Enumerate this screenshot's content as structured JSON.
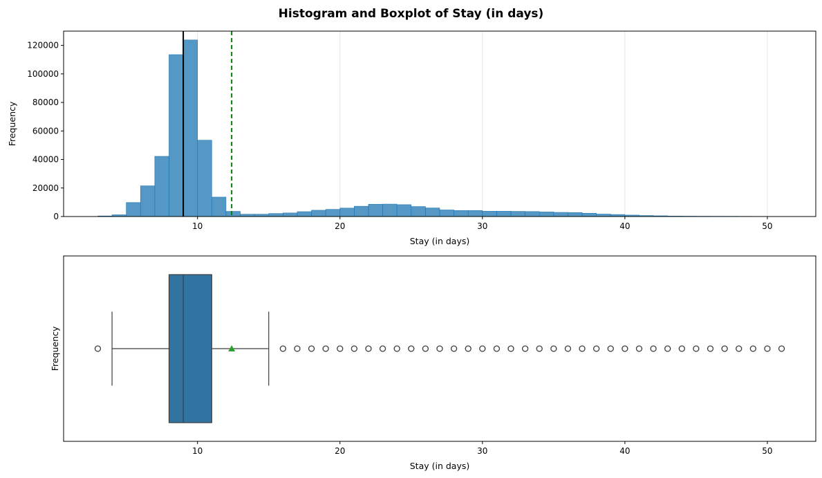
{
  "figure": {
    "title": "Histogram and Boxplot of Stay (in days)"
  },
  "chart_data": [
    {
      "type": "bar",
      "subtype": "histogram",
      "xlabel": "Stay (in days)",
      "ylabel": "Frequency",
      "xlim": [
        0.6,
        53.4
      ],
      "ylim": [
        0,
        130000
      ],
      "xticks": [
        10,
        20,
        30,
        40,
        50
      ],
      "xtick_labels": [
        "10",
        "20",
        "30",
        "40",
        "50"
      ],
      "yticks": [
        0,
        20000,
        40000,
        60000,
        80000,
        100000,
        120000
      ],
      "ytick_labels": [
        "0",
        "20000",
        "40000",
        "60000",
        "80000",
        "100000",
        "120000"
      ],
      "grid": "x",
      "bar_color": "#1f77b4",
      "bin_start": 3,
      "bin_width": 1,
      "values": [
        400,
        1200,
        9800,
        21500,
        42200,
        113500,
        123800,
        53500,
        13600,
        3600,
        1600,
        1600,
        2100,
        2500,
        3400,
        4400,
        5000,
        5900,
        7200,
        8600,
        8700,
        8300,
        7000,
        6000,
        4600,
        4200,
        4200,
        3700,
        3700,
        3600,
        3500,
        3200,
        2900,
        2800,
        2300,
        1700,
        1400,
        1000,
        700,
        500,
        300,
        250,
        200,
        180,
        160,
        130,
        100,
        60
      ],
      "median": 9,
      "mean": 12.4,
      "median_line_color": "#000000",
      "mean_line_color": "#008000"
    },
    {
      "type": "boxplot",
      "xlabel": "Stay (in days)",
      "ylabel": "Frequency",
      "xlim": [
        0.6,
        53.4
      ],
      "xticks": [
        10,
        20,
        30,
        40,
        50
      ],
      "xtick_labels": [
        "10",
        "20",
        "30",
        "40",
        "50"
      ],
      "box_color": "#3274a1",
      "mean_marker_color": "#2ca02c",
      "whisker_low": 4,
      "q1": 8,
      "median": 9,
      "q3": 11,
      "whisker_high": 15,
      "mean": 12.4,
      "outliers": [
        3,
        16,
        17,
        18,
        19,
        20,
        21,
        22,
        23,
        24,
        25,
        26,
        27,
        28,
        29,
        30,
        31,
        32,
        33,
        34,
        35,
        36,
        37,
        38,
        39,
        40,
        41,
        42,
        43,
        44,
        45,
        46,
        47,
        48,
        49,
        50,
        51
      ]
    }
  ]
}
